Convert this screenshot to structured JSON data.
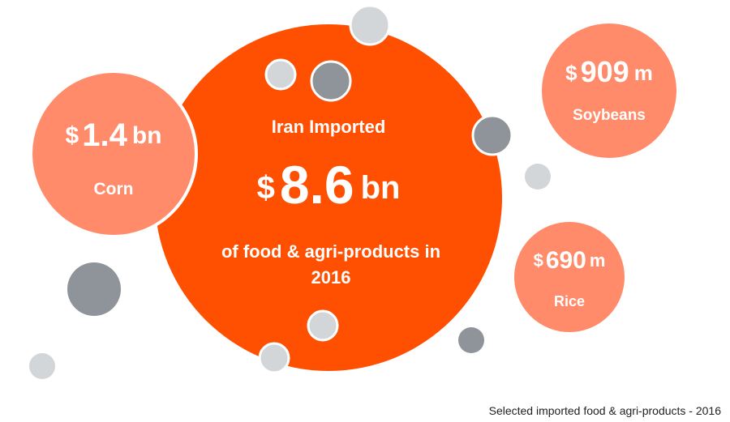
{
  "colors": {
    "main": "#ff4f00",
    "item": "#ff8b6a",
    "dot_light": "#d3d6d9",
    "dot_dark": "#8f949a",
    "ring": "#ffffff",
    "text": "#ffffff"
  },
  "chart_data": {
    "type": "bubble",
    "total": {
      "heading": "Iran Imported",
      "currency": "$",
      "value": "8.6",
      "unit": "bn",
      "description_line1": "of food & agri-products in",
      "description_line2": "2016"
    },
    "items": [
      {
        "name": "Corn",
        "currency": "$",
        "value": "1.4",
        "unit": "bn"
      },
      {
        "name": "Soybeans",
        "currency": "$",
        "value": "909",
        "unit": "m"
      },
      {
        "name": "Rice",
        "currency": "$",
        "value": "690",
        "unit": "m"
      }
    ]
  },
  "source_note": "Selected imported food & agri-products - 2016"
}
